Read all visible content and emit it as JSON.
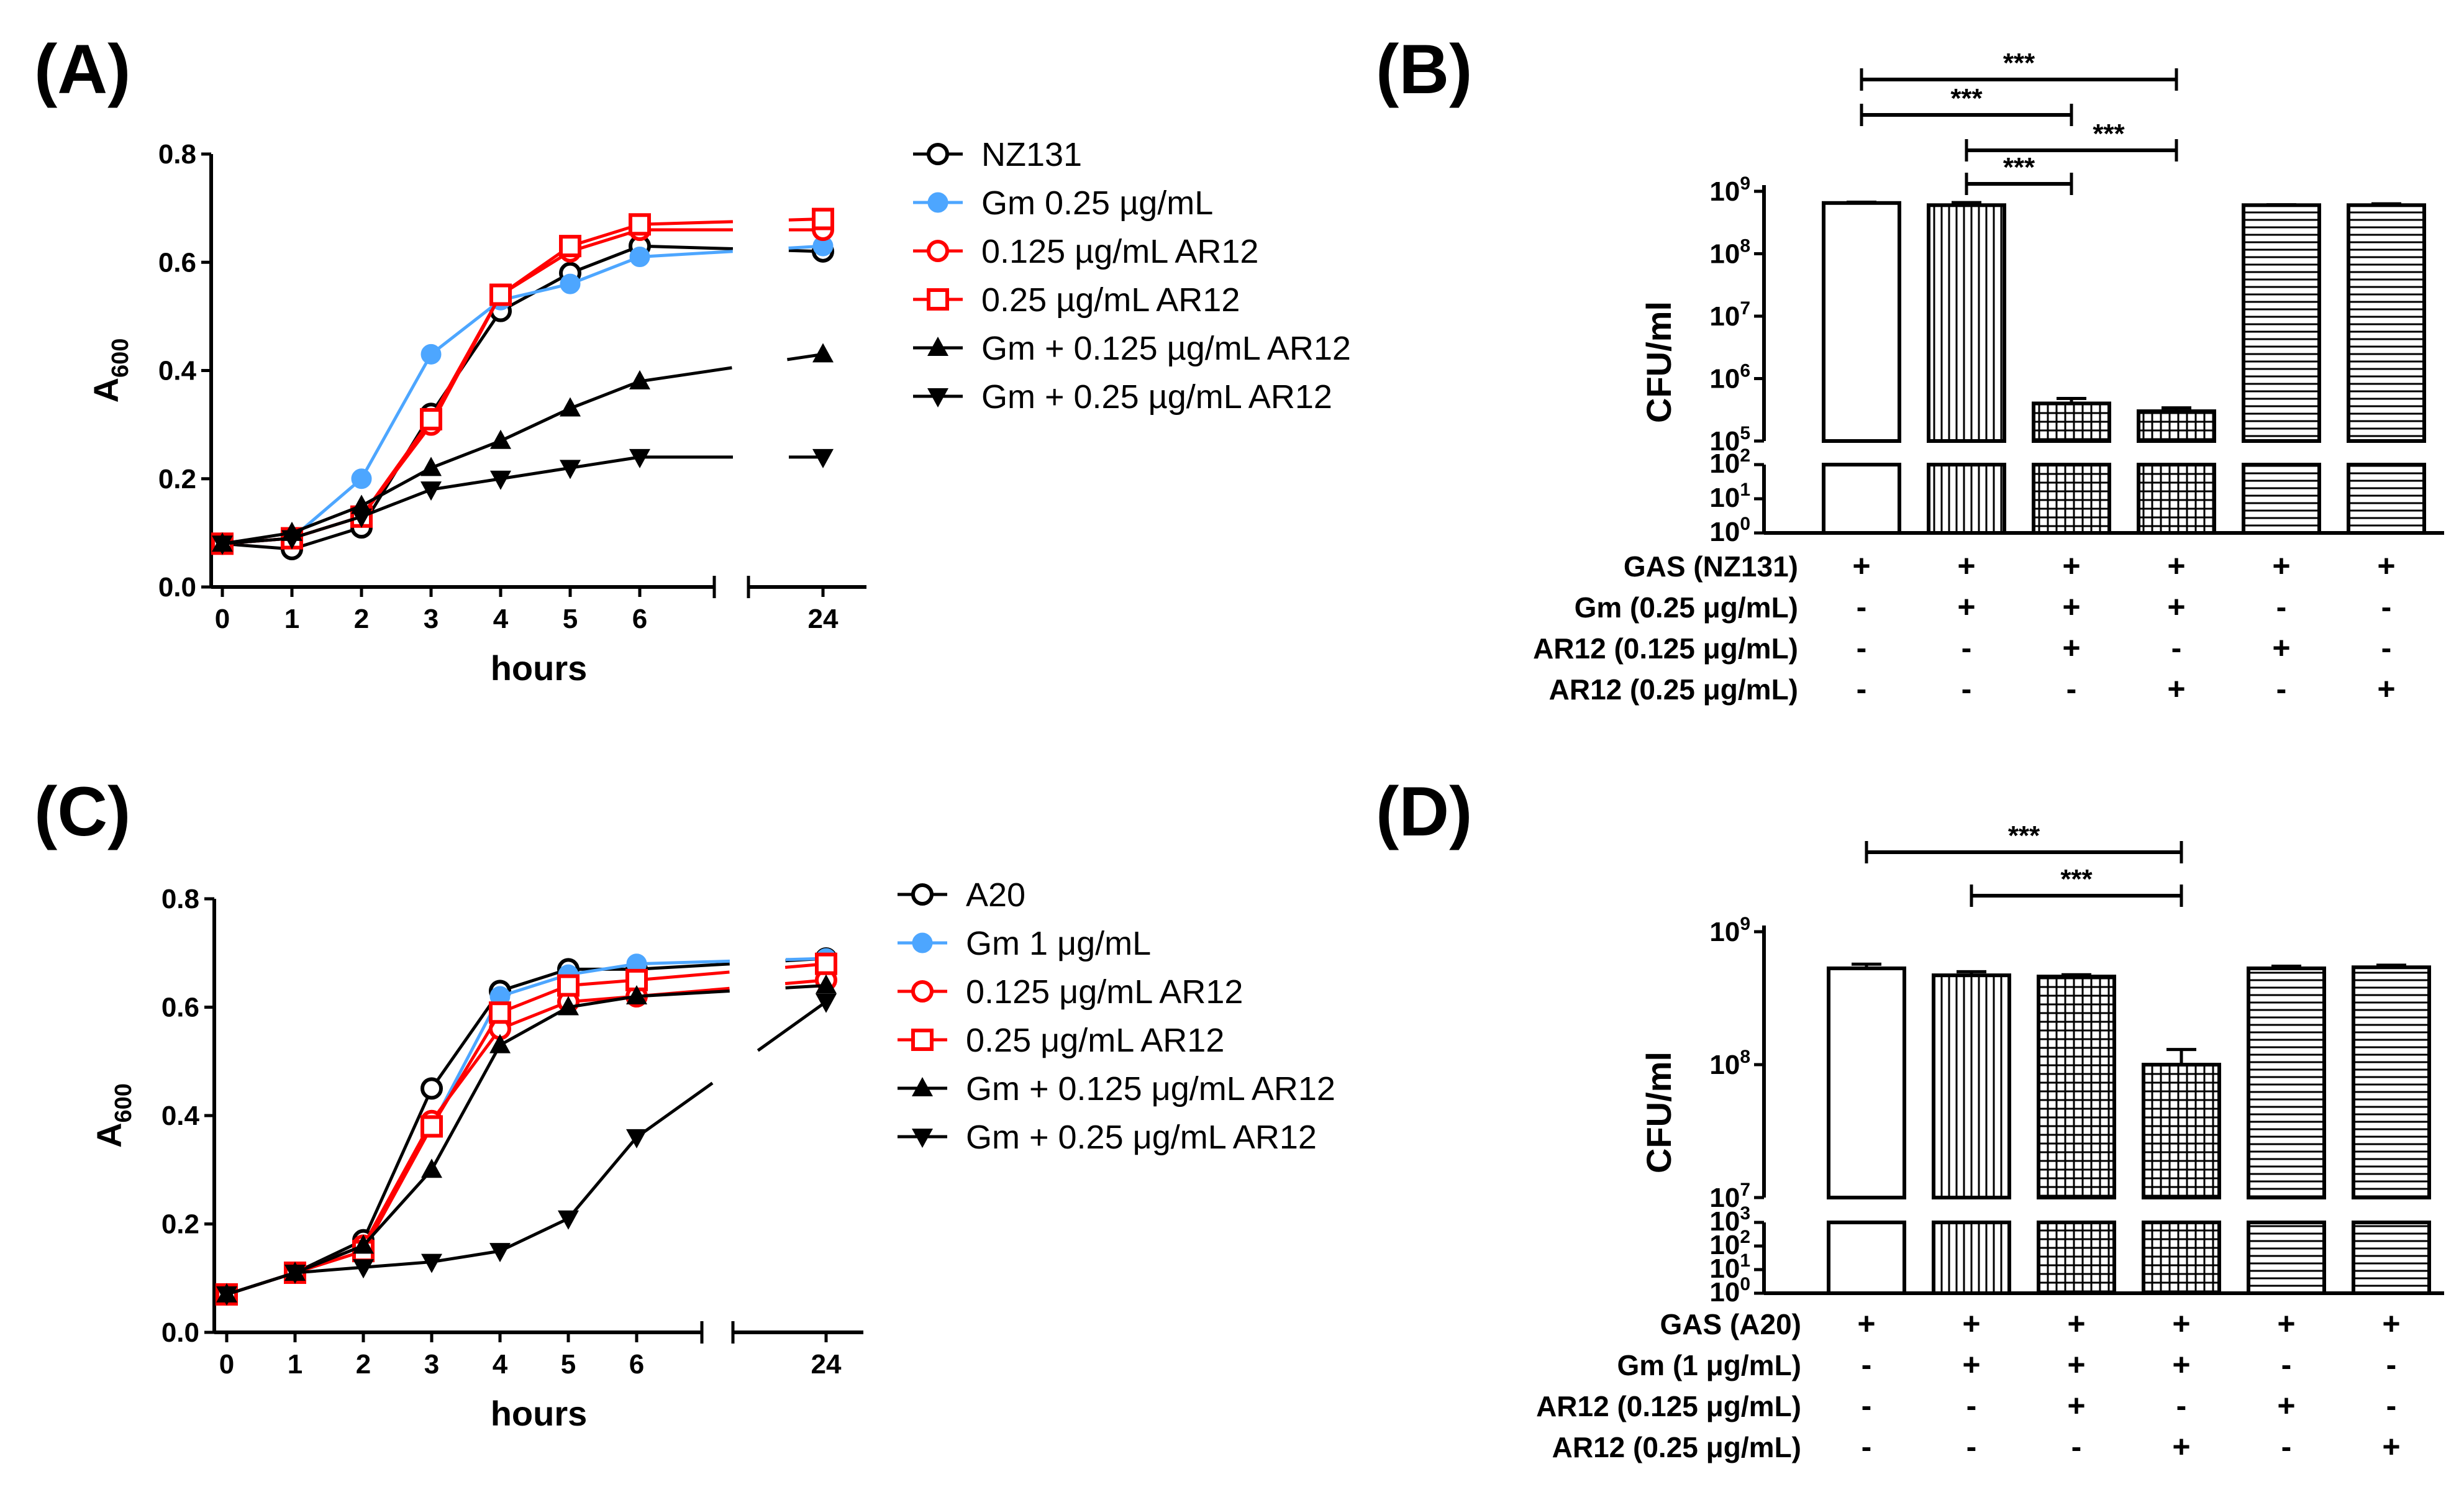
{
  "panels": [
    {
      "id": "A",
      "label": "(A)",
      "chart_data": {
        "type": "line",
        "xlabel": "hours",
        "ylabel": "A",
        "ylabel_sub": "600",
        "ylim": [
          0,
          0.8
        ],
        "yticks": [
          "0.0",
          "0.2",
          "0.4",
          "0.6",
          "0.8"
        ],
        "xticks": [
          "0",
          "1",
          "2",
          "3",
          "4",
          "5",
          "6",
          "24"
        ],
        "x": [
          0,
          1,
          2,
          3,
          4,
          5,
          6,
          24
        ],
        "axis_break": "between 6 and 24",
        "series": [
          {
            "name": "NZ131",
            "color": "#000000",
            "marker": "circle-open",
            "values": [
              0.08,
              0.07,
              0.11,
              0.32,
              0.51,
              0.58,
              0.63,
              0.62
            ]
          },
          {
            "name": "Gm 0.25 µg/mL",
            "color": "#4da6ff",
            "marker": "circle-filled",
            "values": [
              0.08,
              0.09,
              0.2,
              0.43,
              0.53,
              0.56,
              0.61,
              0.63
            ]
          },
          {
            "name": "0.125 µg/mL AR12",
            "color": "#ff0000",
            "marker": "circle-open",
            "values": [
              0.08,
              0.09,
              0.13,
              0.3,
              0.54,
              0.62,
              0.66,
              0.66
            ]
          },
          {
            "name": "0.25 µg/mL AR12",
            "color": "#ff0000",
            "marker": "square-open",
            "values": [
              0.08,
              0.09,
              0.13,
              0.31,
              0.54,
              0.63,
              0.67,
              0.68
            ]
          },
          {
            "name": "Gm + 0.125 µg/mL AR12",
            "color": "#000000",
            "marker": "triangle-up",
            "values": [
              0.08,
              0.1,
              0.15,
              0.22,
              0.27,
              0.33,
              0.38,
              0.43
            ]
          },
          {
            "name": "Gm + 0.25 µg/mL AR12",
            "color": "#000000",
            "marker": "triangle-down",
            "values": [
              0.08,
              0.09,
              0.13,
              0.18,
              0.2,
              0.22,
              0.24,
              0.24
            ]
          }
        ]
      }
    },
    {
      "id": "B",
      "label": "(B)",
      "chart_data": {
        "type": "bar",
        "ylabel": "CFU/ml",
        "scale": "log, broken axis",
        "upper_yticks": [
          {
            "base": "10",
            "exp": "5"
          },
          {
            "base": "10",
            "exp": "6"
          },
          {
            "base": "10",
            "exp": "7"
          },
          {
            "base": "10",
            "exp": "8"
          },
          {
            "base": "10",
            "exp": "9"
          }
        ],
        "lower_yticks": [
          {
            "base": "10",
            "exp": "0"
          },
          {
            "base": "10",
            "exp": "1"
          },
          {
            "base": "10",
            "exp": "2"
          }
        ],
        "values": [
          650000000,
          600000000,
          400000,
          300000,
          600000000,
          600000000
        ],
        "errors": [
          20000000,
          60000000,
          80000,
          40000,
          10000000,
          30000000
        ],
        "patterns": [
          "none",
          "vertical",
          "grid",
          "grid",
          "horizontal",
          "horizontal"
        ],
        "conditions": [
          {
            "label": "GAS (NZ131)",
            "marks": [
              "+",
              "+",
              "+",
              "+",
              "+",
              "+"
            ]
          },
          {
            "label": "Gm (0.25 μg/mL)",
            "marks": [
              "-",
              "+",
              "+",
              "+",
              "-",
              "-"
            ]
          },
          {
            "label": "AR12 (0.125 μg/mL)",
            "marks": [
              "-",
              "-",
              "+",
              "-",
              "+",
              "-"
            ]
          },
          {
            "label": "AR12 (0.25 μg/mL)",
            "marks": [
              "-",
              "-",
              "-",
              "+",
              "-",
              "+"
            ]
          }
        ],
        "significance": [
          {
            "from": 1,
            "to": 4,
            "label": "***"
          },
          {
            "from": 1,
            "to": 3,
            "label": "***"
          },
          {
            "from": 2,
            "to": 4,
            "label": "***"
          },
          {
            "from": 2,
            "to": 3,
            "label": "***"
          }
        ]
      }
    },
    {
      "id": "C",
      "label": "(C)",
      "chart_data": {
        "type": "line",
        "xlabel": "hours",
        "ylabel": "A",
        "ylabel_sub": "600",
        "ylim": [
          0,
          0.8
        ],
        "yticks": [
          "0.0",
          "0.2",
          "0.4",
          "0.6",
          "0.8"
        ],
        "xticks": [
          "0",
          "1",
          "2",
          "3",
          "4",
          "5",
          "6",
          "24"
        ],
        "x": [
          0,
          1,
          2,
          3,
          4,
          5,
          6,
          24
        ],
        "axis_break": "between 6 and 24",
        "series": [
          {
            "name": "A20",
            "color": "#000000",
            "marker": "circle-open",
            "values": [
              0.07,
              0.11,
              0.17,
              0.45,
              0.63,
              0.67,
              0.67,
              0.69
            ]
          },
          {
            "name": "Gm 1 μg/mL",
            "color": "#4da6ff",
            "marker": "circle-filled",
            "values": [
              0.07,
              0.11,
              0.16,
              0.38,
              0.62,
              0.66,
              0.68,
              0.69
            ]
          },
          {
            "name": "0.125 μg/mL AR12",
            "color": "#ff0000",
            "marker": "circle-open",
            "values": [
              0.07,
              0.11,
              0.16,
              0.39,
              0.56,
              0.61,
              0.62,
              0.65
            ]
          },
          {
            "name": "0.25 μg/mL AR12",
            "color": "#ff0000",
            "marker": "square-open",
            "values": [
              0.07,
              0.11,
              0.15,
              0.38,
              0.59,
              0.64,
              0.65,
              0.68
            ]
          },
          {
            "name": "Gm + 0.125 μg/mL AR12",
            "color": "#000000",
            "marker": "triangle-up",
            "values": [
              0.07,
              0.11,
              0.16,
              0.3,
              0.53,
              0.6,
              0.62,
              0.64
            ]
          },
          {
            "name": "Gm + 0.25 μg/mL AR12",
            "color": "#000000",
            "marker": "triangle-down",
            "values": [
              0.07,
              0.11,
              0.12,
              0.13,
              0.15,
              0.21,
              0.36,
              0.61
            ]
          }
        ]
      }
    },
    {
      "id": "D",
      "label": "(D)",
      "chart_data": {
        "type": "bar",
        "ylabel": "CFU/ml",
        "scale": "log, broken axis",
        "upper_yticks": [
          {
            "base": "10",
            "exp": "7"
          },
          {
            "base": "10",
            "exp": "8"
          },
          {
            "base": "10",
            "exp": "9"
          }
        ],
        "lower_yticks": [
          {
            "base": "10",
            "exp": "0"
          },
          {
            "base": "10",
            "exp": "1"
          },
          {
            "base": "10",
            "exp": "2"
          },
          {
            "base": "10",
            "exp": "3"
          }
        ],
        "values": [
          530000000,
          470000000,
          460000000,
          100000000,
          530000000,
          540000000
        ],
        "errors": [
          40000000,
          30000000,
          15000000,
          30000000,
          20000000,
          20000000
        ],
        "patterns": [
          "none",
          "vertical",
          "grid",
          "grid",
          "horizontal",
          "horizontal"
        ],
        "conditions": [
          {
            "label": "GAS (A20)",
            "marks": [
              "+",
              "+",
              "+",
              "+",
              "+",
              "+"
            ]
          },
          {
            "label": "Gm (1 μg/mL)",
            "marks": [
              "-",
              "+",
              "+",
              "+",
              "-",
              "-"
            ]
          },
          {
            "label": "AR12 (0.125 μg/mL)",
            "marks": [
              "-",
              "-",
              "+",
              "-",
              "+",
              "-"
            ]
          },
          {
            "label": "AR12 (0.25 μg/mL)",
            "marks": [
              "-",
              "-",
              "-",
              "+",
              "-",
              "+"
            ]
          }
        ],
        "significance": [
          {
            "from": 1,
            "to": 4,
            "label": "***"
          },
          {
            "from": 2,
            "to": 4,
            "label": "***"
          }
        ]
      }
    }
  ]
}
